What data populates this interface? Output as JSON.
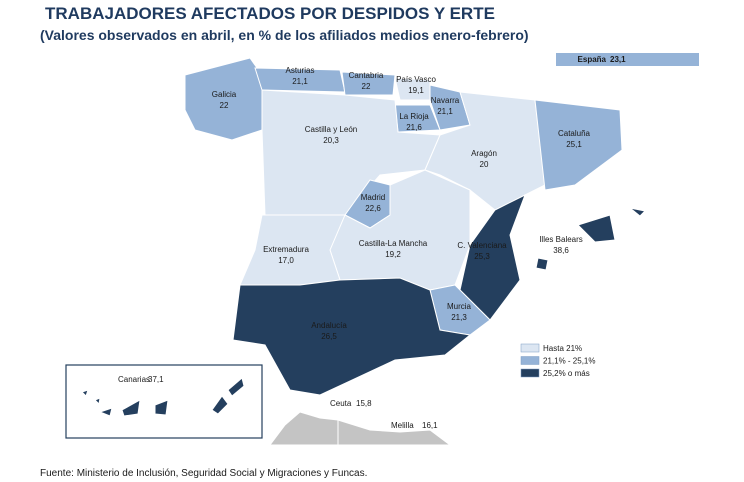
{
  "header": {
    "title": "TRABAJADORES AFECTADOS POR DESPIDOS Y ERTE",
    "subtitle": "(Valores observados en abril, en % de los afiliados medios enero-febrero)"
  },
  "total": {
    "name": "España",
    "value": "23,1",
    "color": "#95b3d7"
  },
  "regions": [
    {
      "name": "Galicia",
      "value": "22",
      "color": "#95b3d7"
    },
    {
      "name": "Asturias",
      "value": "21,1",
      "color": "#95b3d7"
    },
    {
      "name": "Cantabria",
      "value": "22",
      "color": "#95b3d7"
    },
    {
      "name": "País Vasco",
      "value": "19,1",
      "color": "#dce6f2"
    },
    {
      "name": "Navarra",
      "value": "21,1",
      "color": "#95b3d7"
    },
    {
      "name": "La Rioja",
      "value": "21,6",
      "color": "#95b3d7"
    },
    {
      "name": "Castilla y León",
      "value": "20,3",
      "color": "#dce6f2"
    },
    {
      "name": "Aragón",
      "value": "20",
      "color": "#dce6f2"
    },
    {
      "name": "Cataluña",
      "value": "25,1",
      "color": "#95b3d7"
    },
    {
      "name": "Madrid",
      "value": "22,6",
      "color": "#95b3d7"
    },
    {
      "name": "Castilla-La Mancha",
      "value": "19,2",
      "color": "#dce6f2"
    },
    {
      "name": "Extremadura",
      "value": "17,0",
      "color": "#dce6f2"
    },
    {
      "name": "C. Valenciana",
      "value": "25,3",
      "color": "#243f5e"
    },
    {
      "name": "Murcia",
      "value": "21,3",
      "color": "#95b3d7"
    },
    {
      "name": "Andalucía",
      "value": "26,5",
      "color": "#243f5e"
    },
    {
      "name": "Illes Balears",
      "value": "38,6",
      "color": "#243f5e"
    },
    {
      "name": "Canarias",
      "value": "37,1",
      "color": "#243f5e"
    },
    {
      "name": "Ceuta",
      "value": "15,8",
      "color": "#c4c4c4"
    },
    {
      "name": "Melilla",
      "value": "16,1",
      "color": "#c4c4c4"
    }
  ],
  "legend": [
    {
      "label": "Hasta 21%",
      "color": "#dce6f2"
    },
    {
      "label": "21,1% - 25,1%",
      "color": "#95b3d7"
    },
    {
      "label": "25,2% o más",
      "color": "#243f5e"
    }
  ],
  "source": "Fuente: Ministerio de Inclusión, Seguridad Social y Migraciones y Funcas."
}
